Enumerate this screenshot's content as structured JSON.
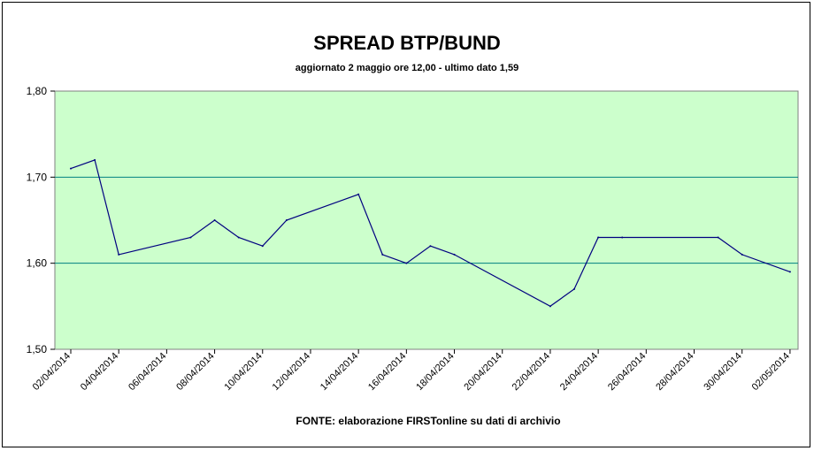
{
  "chart_data": {
    "type": "line",
    "title": "SPREAD BTP/BUND",
    "subtitle": "aggiornato 2 maggio ore 12,00 - ultimo dato 1,59",
    "source": "FONTE:  elaborazione FIRSTonline su dati di archivio",
    "ylim": [
      1.5,
      1.8
    ],
    "yticks": [
      "1,50",
      "1,60",
      "1,70",
      "1,80"
    ],
    "grid": true,
    "legend": "none",
    "colors": {
      "plot_background": "#ccffcc",
      "line": "#000080",
      "gridline": "#008080"
    },
    "xtick_labels": [
      "02/04/2014",
      "04/04/2014",
      "06/04/2014",
      "08/04/2014",
      "10/04/2014",
      "12/04/2014",
      "14/04/2014",
      "16/04/2014",
      "18/04/2014",
      "20/04/2014",
      "22/04/2014",
      "24/04/2014",
      "26/04/2014",
      "28/04/2014",
      "30/04/2014",
      "02/05/2014"
    ],
    "series": [
      {
        "x": [
          "02/04/2014",
          "03/04/2014",
          "04/04/2014",
          "07/04/2014",
          "08/04/2014",
          "09/04/2014",
          "10/04/2014",
          "11/04/2014",
          "14/04/2014",
          "15/04/2014",
          "16/04/2014",
          "17/04/2014",
          "18/04/2014",
          "22/04/2014",
          "23/04/2014",
          "24/04/2014",
          "25/04/2014",
          "29/04/2014",
          "30/04/2014",
          "02/05/2014"
        ],
        "values": [
          1.71,
          1.72,
          1.61,
          1.63,
          1.65,
          1.63,
          1.62,
          1.65,
          1.68,
          1.61,
          1.6,
          1.62,
          1.61,
          1.55,
          1.57,
          1.63,
          1.63,
          1.63,
          1.61,
          1.59
        ]
      }
    ]
  }
}
